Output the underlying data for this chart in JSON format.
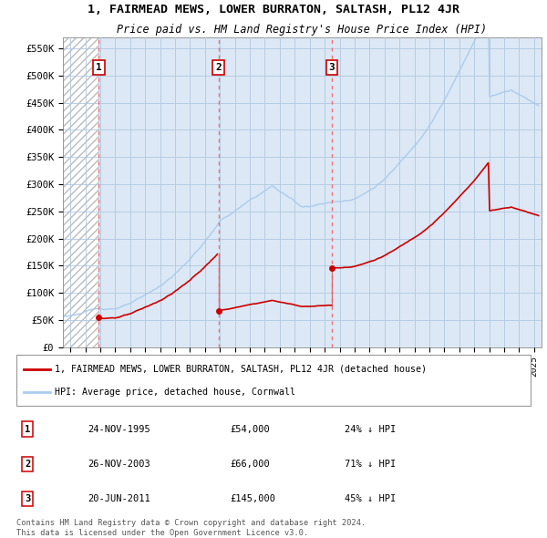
{
  "title": "1, FAIRMEAD MEWS, LOWER BURRATON, SALTASH, PL12 4JR",
  "subtitle": "Price paid vs. HM Land Registry's House Price Index (HPI)",
  "xlim_start": 1993.5,
  "xlim_end": 2025.5,
  "ylim_min": 0,
  "ylim_max": 570000,
  "yticks": [
    0,
    50000,
    100000,
    150000,
    200000,
    250000,
    300000,
    350000,
    400000,
    450000,
    500000,
    550000
  ],
  "ytick_labels": [
    "£0",
    "£50K",
    "£100K",
    "£150K",
    "£200K",
    "£250K",
    "£300K",
    "£350K",
    "£400K",
    "£450K",
    "£500K",
    "£550K"
  ],
  "sale_dates": [
    1995.9,
    2003.9,
    2011.47
  ],
  "sale_prices": [
    54000,
    66000,
    145000
  ],
  "sale_labels": [
    "1",
    "2",
    "3"
  ],
  "hpi_line_color": "#aaccee",
  "price_line_color": "#cc0000",
  "sale_dot_color": "#cc0000",
  "dashed_line_color": "#ee6666",
  "hatch_color": "#bbbbbb",
  "bg_color": "#dce8f5",
  "grid_color": "#b0c8e0",
  "legend_label_price": "1, FAIRMEAD MEWS, LOWER BURRATON, SALTASH, PL12 4JR (detached house)",
  "legend_label_hpi": "HPI: Average price, detached house, Cornwall",
  "table_rows": [
    [
      "1",
      "24-NOV-1995",
      "£54,000",
      "24% ↓ HPI"
    ],
    [
      "2",
      "26-NOV-2003",
      "£66,000",
      "71% ↓ HPI"
    ],
    [
      "3",
      "20-JUN-2011",
      "£145,000",
      "45% ↓ HPI"
    ]
  ],
  "footnote": "Contains HM Land Registry data © Crown copyright and database right 2024.\nThis data is licensed under the Open Government Licence v3.0."
}
